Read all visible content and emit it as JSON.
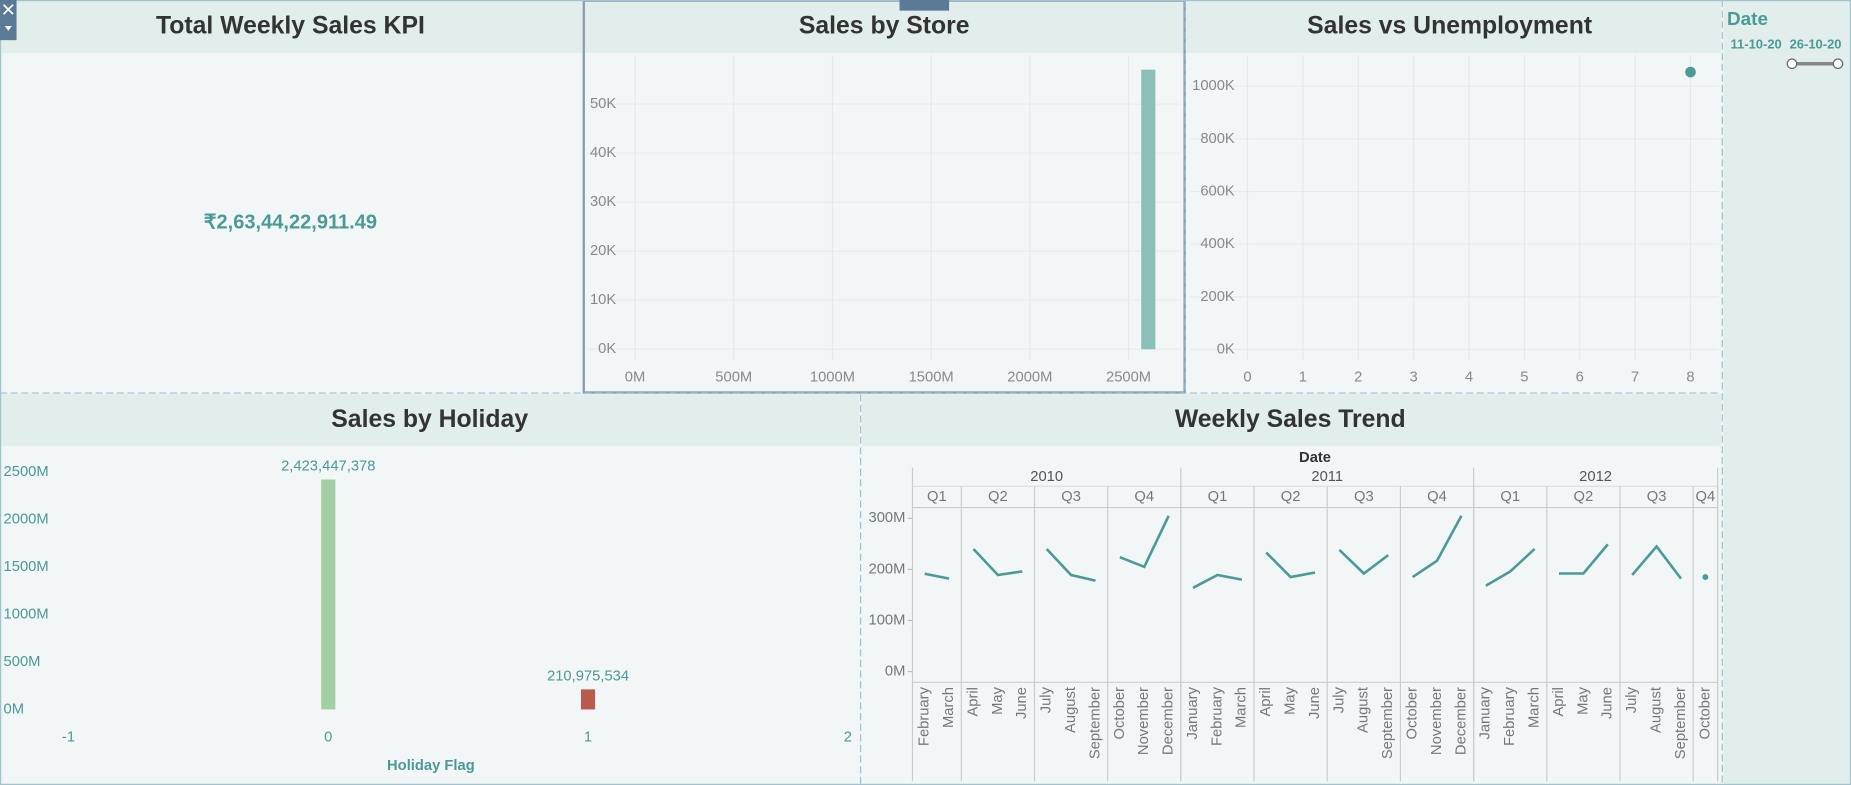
{
  "kpi": {
    "title": "Total Weekly Sales KPI",
    "value": "₹2,63,44,22,911.49"
  },
  "filter": {
    "title": "Date",
    "start": "11-10-20",
    "end": "26-10-20"
  },
  "chart_data": [
    {
      "type": "bar",
      "title": "Sales by Store",
      "color": "#8cbfb8",
      "grid": true,
      "x": [
        2600000000
      ],
      "values": [
        57000
      ],
      "xlim": [
        -239000000,
        2763000000
      ],
      "xticks": [
        {
          "value": 0,
          "label": "0M"
        },
        {
          "value": 500000000,
          "label": "500M"
        },
        {
          "value": 1000000000,
          "label": "1000M"
        },
        {
          "value": 1500000000,
          "label": "1500M"
        },
        {
          "value": 2000000000,
          "label": "2000M"
        },
        {
          "value": 2500000000,
          "label": "2500M"
        }
      ],
      "ylim": [
        -2200,
        59900
      ],
      "yticks": [
        {
          "value": 0,
          "label": "0K"
        },
        {
          "value": 10000,
          "label": "10K"
        },
        {
          "value": 20000,
          "label": "20K"
        },
        {
          "value": 30000,
          "label": "30K"
        },
        {
          "value": 40000,
          "label": "40K"
        },
        {
          "value": 50000,
          "label": "50K"
        }
      ]
    },
    {
      "type": "scatter",
      "title": "Sales vs Unemployment",
      "color": "#4a9a96",
      "grid": true,
      "x": [
        8
      ],
      "values": [
        1054000
      ],
      "xlim": [
        -1.04,
        8.51
      ],
      "xticks": [
        0,
        1,
        2,
        3,
        4,
        5,
        6,
        7,
        8
      ],
      "ylim": [
        -40000,
        1117000
      ],
      "yticks": [
        {
          "value": 0,
          "label": "0K"
        },
        {
          "value": 200000,
          "label": "200K"
        },
        {
          "value": 400000,
          "label": "400K"
        },
        {
          "value": 600000,
          "label": "600K"
        },
        {
          "value": 800000,
          "label": "800K"
        },
        {
          "value": 1000000,
          "label": "1000K"
        }
      ]
    },
    {
      "type": "bar",
      "title": "Sales by Holiday",
      "xlabel": "Holiday Flag",
      "grid": false,
      "x": [
        0,
        1
      ],
      "values": [
        2423447378,
        210975534
      ],
      "value_labels": [
        "2,423,447,378",
        "210,975,534"
      ],
      "colors": [
        "#a3cfa5",
        "#b85b4d"
      ],
      "xlim": [
        -1.25,
        2.04
      ],
      "xticks": [
        -1,
        0,
        1,
        2
      ],
      "ylim": [
        -137000000,
        2749000000
      ],
      "yticks": [
        {
          "value": 0,
          "label": "0M"
        },
        {
          "value": 500000000,
          "label": "500M"
        },
        {
          "value": 1000000000,
          "label": "1000M"
        },
        {
          "value": 1500000000,
          "label": "1500M"
        },
        {
          "value": 2000000000,
          "label": "2000M"
        },
        {
          "value": 2500000000,
          "label": "2500M"
        }
      ]
    },
    {
      "type": "line",
      "title": "Weekly Sales Trend",
      "xlabel": "Date",
      "color": "#4a9a96",
      "ylim": [
        -21000000,
        321000000
      ],
      "yticks": [
        {
          "value": 0,
          "label": "0M"
        },
        {
          "value": 100000000,
          "label": "100M"
        },
        {
          "value": 200000000,
          "label": "200M"
        },
        {
          "value": 300000000,
          "label": "300M"
        }
      ],
      "years": [
        {
          "label": "2010",
          "quarters": [
            {
              "label": "Q1",
              "categories": [
                "February",
                "March"
              ],
              "values": [
                191500000,
                182000000
              ]
            },
            {
              "label": "Q2",
              "categories": [
                "April",
                "May",
                "June"
              ],
              "values": [
                240000000,
                189000000,
                196000000
              ]
            },
            {
              "label": "Q3",
              "categories": [
                "July",
                "August",
                "September"
              ],
              "values": [
                240000000,
                189000000,
                178000000
              ]
            },
            {
              "label": "Q4",
              "categories": [
                "October",
                "November",
                "December"
              ],
              "values": [
                224000000,
                205000000,
                305000000
              ]
            }
          ]
        },
        {
          "label": "2011",
          "quarters": [
            {
              "label": "Q1",
              "categories": [
                "January",
                "February",
                "March"
              ],
              "values": [
                164000000,
                189000000,
                180000000
              ]
            },
            {
              "label": "Q2",
              "categories": [
                "April",
                "May",
                "June"
              ],
              "values": [
                233000000,
                185000000,
                194000000
              ]
            },
            {
              "label": "Q3",
              "categories": [
                "July",
                "August",
                "September"
              ],
              "values": [
                238000000,
                192000000,
                228000000
              ]
            },
            {
              "label": "Q4",
              "categories": [
                "October",
                "November",
                "December"
              ],
              "values": [
                185000000,
                217000000,
                305000000
              ]
            }
          ]
        },
        {
          "label": "2012",
          "quarters": [
            {
              "label": "Q1",
              "categories": [
                "January",
                "February",
                "March"
              ],
              "values": [
                168000000,
                196000000,
                240000000
              ]
            },
            {
              "label": "Q2",
              "categories": [
                "April",
                "May",
                "June"
              ],
              "values": [
                192000000,
                192000000,
                249000000
              ]
            },
            {
              "label": "Q3",
              "categories": [
                "July",
                "August",
                "September"
              ],
              "values": [
                189000000,
                245000000,
                182000000
              ]
            },
            {
              "label": "Q4",
              "categories": [
                "October"
              ],
              "values": [
                185000000
              ]
            }
          ]
        }
      ]
    }
  ]
}
